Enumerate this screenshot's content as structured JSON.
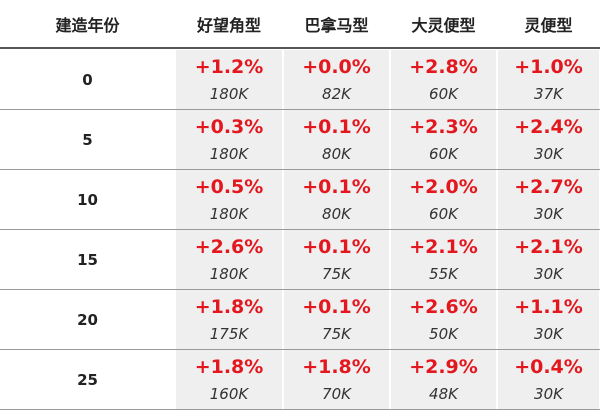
{
  "header": [
    "建造年份",
    "好望角型",
    "巴拿马型",
    "大灵便型",
    "灵便型"
  ],
  "rows": [
    {
      "year": "0",
      "cells": [
        {
          "pct": "+1.2%",
          "count": "180K"
        },
        {
          "pct": "+0.0%",
          "count": "82K"
        },
        {
          "pct": "+2.8%",
          "count": "60K"
        },
        {
          "pct": "+1.0%",
          "count": "37K"
        }
      ]
    },
    {
      "year": "5",
      "cells": [
        {
          "pct": "+0.3%",
          "count": "180K"
        },
        {
          "pct": "+0.1%",
          "count": "80K"
        },
        {
          "pct": "+2.3%",
          "count": "60K"
        },
        {
          "pct": "+2.4%",
          "count": "30K"
        }
      ]
    },
    {
      "year": "10",
      "cells": [
        {
          "pct": "+0.5%",
          "count": "180K"
        },
        {
          "pct": "+0.1%",
          "count": "80K"
        },
        {
          "pct": "+2.0%",
          "count": "60K"
        },
        {
          "pct": "+2.7%",
          "count": "30K"
        }
      ]
    },
    {
      "year": "15",
      "cells": [
        {
          "pct": "+2.6%",
          "count": "180K"
        },
        {
          "pct": "+0.1%",
          "count": "75K"
        },
        {
          "pct": "+2.1%",
          "count": "55K"
        },
        {
          "pct": "+2.1%",
          "count": "30K"
        }
      ]
    },
    {
      "year": "20",
      "cells": [
        {
          "pct": "+1.8%",
          "count": "175K"
        },
        {
          "pct": "+0.1%",
          "count": "75K"
        },
        {
          "pct": "+2.6%",
          "count": "50K"
        },
        {
          "pct": "+1.1%",
          "count": "30K"
        }
      ]
    },
    {
      "year": "25",
      "cells": [
        {
          "pct": "+1.8%",
          "count": "160K"
        },
        {
          "pct": "+1.8%",
          "count": "70K"
        },
        {
          "pct": "+2.9%",
          "count": "48K"
        },
        {
          "pct": "+0.4%",
          "count": "30K"
        }
      ]
    }
  ]
}
